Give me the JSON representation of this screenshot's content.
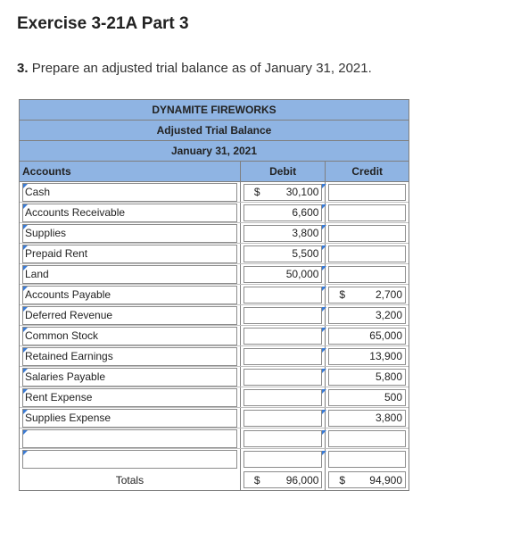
{
  "header": {
    "title": "Exercise 3-21A Part 3",
    "step": "3.",
    "instruction": "Prepare an adjusted trial balance as of January 31, 2021."
  },
  "table": {
    "company": "DYNAMITE FIREWORKS",
    "statement": "Adjusted Trial Balance",
    "date": "January 31, 2021",
    "columns": {
      "accounts": "Accounts",
      "debit": "Debit",
      "credit": "Credit"
    },
    "currency_symbol": "$",
    "rows": [
      {
        "account": "Cash",
        "debit": "30,100",
        "credit": ""
      },
      {
        "account": "Accounts Receivable",
        "debit": "6,600",
        "credit": ""
      },
      {
        "account": "Supplies",
        "debit": "3,800",
        "credit": ""
      },
      {
        "account": "Prepaid Rent",
        "debit": "5,500",
        "credit": ""
      },
      {
        "account": "Land",
        "debit": "50,000",
        "credit": ""
      },
      {
        "account": "Accounts Payable",
        "debit": "",
        "credit": "2,700"
      },
      {
        "account": "Deferred Revenue",
        "debit": "",
        "credit": "3,200"
      },
      {
        "account": "Common Stock",
        "debit": "",
        "credit": "65,000"
      },
      {
        "account": "Retained Earnings",
        "debit": "",
        "credit": "13,900"
      },
      {
        "account": "Salaries Payable",
        "debit": "",
        "credit": "5,800"
      },
      {
        "account": "Rent Expense",
        "debit": "",
        "credit": "500"
      },
      {
        "account": "Supplies Expense",
        "debit": "",
        "credit": "3,800"
      },
      {
        "account": "",
        "debit": "",
        "credit": ""
      },
      {
        "account": "",
        "debit": "",
        "credit": ""
      }
    ],
    "totals": {
      "label": "Totals",
      "debit": "96,000",
      "credit": "94,900"
    }
  }
}
